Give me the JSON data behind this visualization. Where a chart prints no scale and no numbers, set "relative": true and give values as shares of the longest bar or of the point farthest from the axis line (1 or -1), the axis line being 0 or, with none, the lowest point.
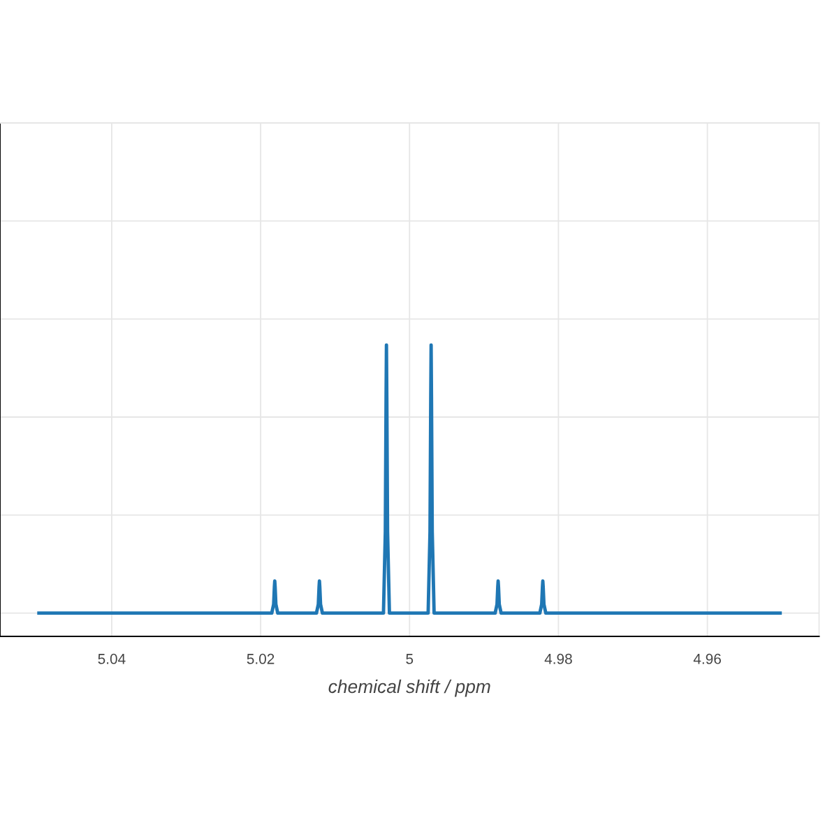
{
  "chart_data": {
    "type": "line",
    "xlabel": "chemical shift / ppm",
    "x": [
      5.05,
      5.0185,
      5.01825,
      5.01815,
      5.0181,
      5.01805,
      5.01795,
      5.0177,
      5.0125,
      5.01225,
      5.01215,
      5.0121,
      5.01205,
      5.01195,
      5.0117,
      5.0035,
      5.00325,
      5.00315,
      5.0031,
      5.00305,
      5.00295,
      5.0027,
      4.9975,
      4.99725,
      4.99715,
      4.9971,
      4.99705,
      4.99695,
      4.9967,
      4.9885,
      4.98825,
      4.98815,
      4.9881,
      4.98805,
      4.98795,
      4.9877,
      4.9825,
      4.98225,
      4.98215,
      4.9821,
      4.98205,
      4.98195,
      4.9817,
      4.95
    ],
    "series": [
      {
        "color": "#1f77b4",
        "values": [
          0.08,
          0.08,
          0.11,
          0.17,
          0.19,
          0.17,
          0.11,
          0.08,
          0.08,
          0.11,
          0.17,
          0.19,
          0.17,
          0.11,
          0.08,
          0.08,
          0.36,
          0.82,
          1,
          0.82,
          0.36,
          0.08,
          0.08,
          0.36,
          0.82,
          1,
          0.82,
          0.36,
          0.08,
          0.08,
          0.11,
          0.17,
          0.19,
          0.17,
          0.11,
          0.08,
          0.08,
          0.11,
          0.17,
          0.19,
          0.17,
          0.11,
          0.08,
          0.08
        ]
      }
    ],
    "relative": true,
    "xlim": [
      5.055,
      4.945
    ],
    "xticks": [
      5.04,
      5.02,
      5,
      4.98,
      4.96
    ],
    "grid": true,
    "tick_labels": "x"
  }
}
